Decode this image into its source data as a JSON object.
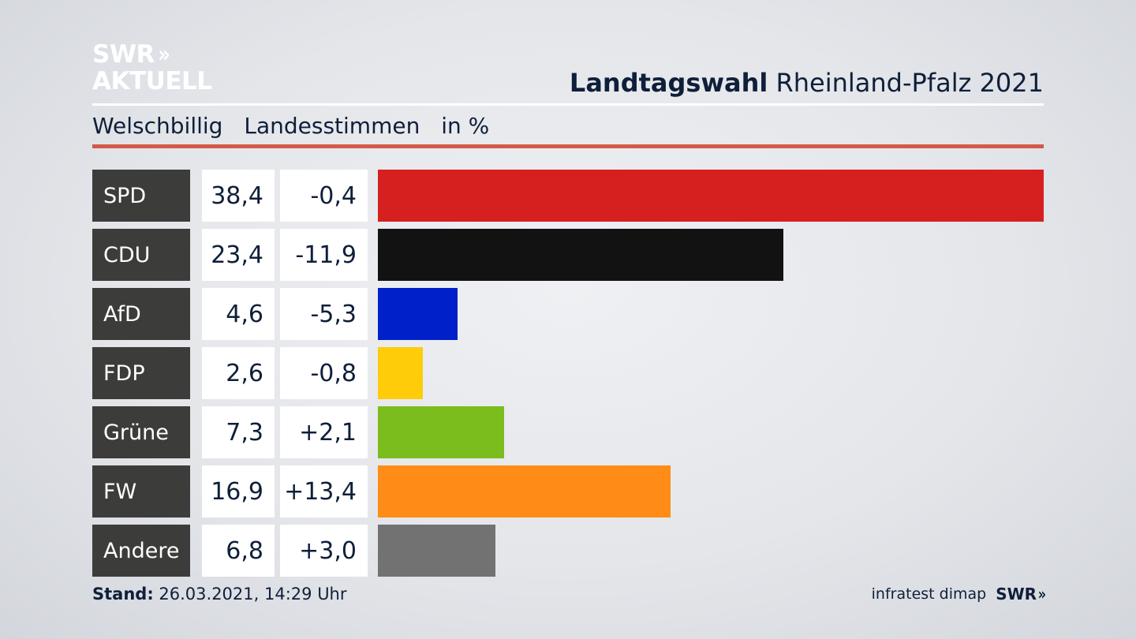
{
  "logo": {
    "line1": "SWR",
    "line2": "AKTUELL",
    "chevrons": "»"
  },
  "header": {
    "title_bold": "Landtagswahl",
    "title_rest": "Rheinland-Pfalz 2021"
  },
  "subheader": {
    "place": "Welschbillig",
    "measure": "Landesstimmen",
    "unit": "in %"
  },
  "footer": {
    "stand_label": "Stand:",
    "stand_value": "26.03.2021, 14:29 Uhr",
    "source": "infratest dimap",
    "brand": "SWR",
    "brand_chevrons": "»"
  },
  "chart_data": {
    "type": "bar",
    "orientation": "horizontal",
    "categories": [
      "SPD",
      "CDU",
      "AfD",
      "FDP",
      "Grüne",
      "FW",
      "Andere"
    ],
    "values": [
      38.4,
      23.4,
      4.6,
      2.6,
      7.3,
      16.9,
      6.8
    ],
    "value_labels": [
      "38,4",
      "23,4",
      "4,6",
      "2,6",
      "7,3",
      "16,9",
      "6,8"
    ],
    "changes": [
      -0.4,
      -11.9,
      -5.3,
      -0.8,
      2.1,
      13.4,
      3.0
    ],
    "change_labels": [
      "-0,4",
      "-11,9",
      "-5,3",
      "-0,8",
      "+2,1",
      "+13,4",
      "+3,0"
    ],
    "colors": [
      "#d62020",
      "#121212",
      "#0021c9",
      "#ffcc0a",
      "#7abd1d",
      "#ff8c16",
      "#727272"
    ],
    "xlim": [
      0,
      38.4
    ],
    "grid": false
  }
}
